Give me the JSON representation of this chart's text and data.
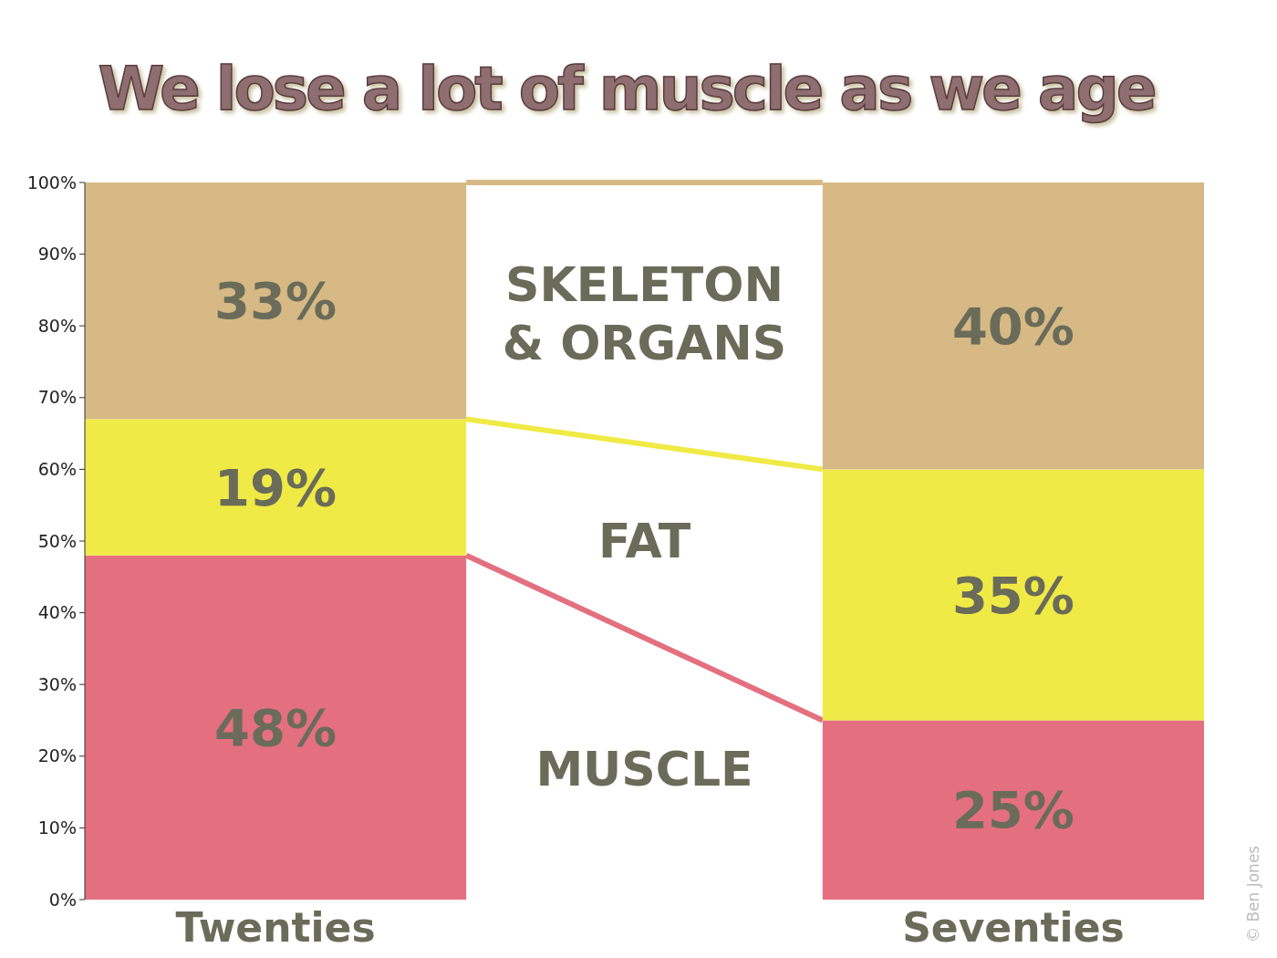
{
  "chart_data": {
    "type": "bar",
    "title": "We lose a lot of muscle as we age",
    "stacked": true,
    "categories": [
      "Twenties",
      "Seventies"
    ],
    "series": [
      {
        "name": "MUSCLE",
        "color": "#e4707f",
        "values": [
          48,
          25
        ],
        "value_labels": [
          "48%",
          "25%"
        ]
      },
      {
        "name": "FAT",
        "color": "#f0ea46",
        "values": [
          19,
          35
        ],
        "value_labels": [
          "19%",
          "35%"
        ]
      },
      {
        "name": "SKELETON & ORGANS",
        "color": "#d6b984",
        "values": [
          33,
          40
        ],
        "value_labels": [
          "33%",
          "40%"
        ]
      }
    ],
    "ylim": [
      0,
      100
    ],
    "yticks": [
      {
        "value": 0,
        "label": "0%"
      },
      {
        "value": 10,
        "label": "10%"
      },
      {
        "value": 20,
        "label": "20%"
      },
      {
        "value": 30,
        "label": "30%"
      },
      {
        "value": 40,
        "label": "40%"
      },
      {
        "value": 50,
        "label": "50%"
      },
      {
        "value": 60,
        "label": "60%"
      },
      {
        "value": 70,
        "label": "70%"
      },
      {
        "value": 80,
        "label": "80%"
      },
      {
        "value": 90,
        "label": "90%"
      },
      {
        "value": 100,
        "label": "100%"
      }
    ],
    "annotations": [
      "© Ben Jones"
    ]
  }
}
